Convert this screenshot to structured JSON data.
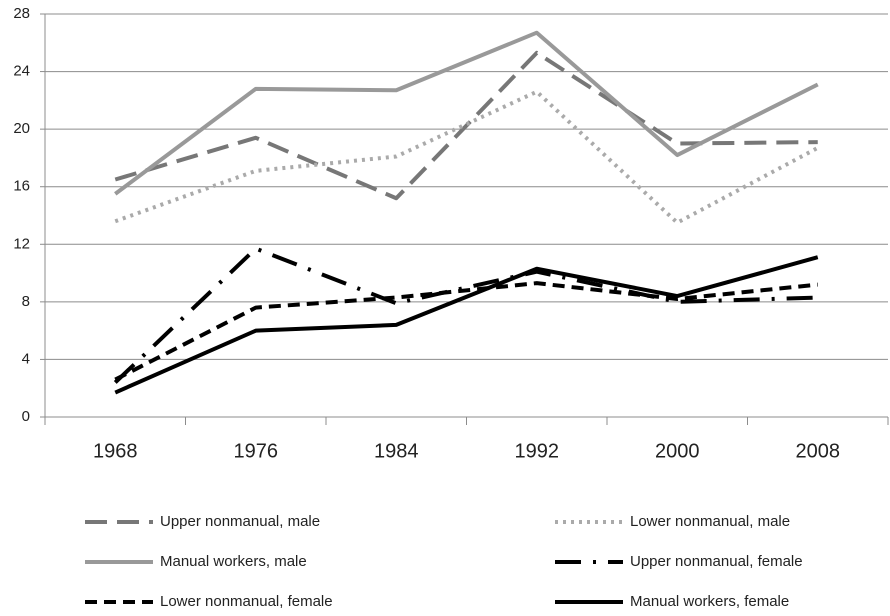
{
  "chart_data": {
    "type": "line",
    "categories": [
      "1968",
      "1976",
      "1984",
      "1992",
      "2000",
      "2008"
    ],
    "ylim": [
      0,
      28
    ],
    "yticks": [
      0,
      4,
      8,
      12,
      16,
      20,
      24,
      28
    ],
    "grid": true,
    "series": [
      {
        "name": "Upper nonmanual, male",
        "color": "#777777",
        "line_style": "long-dash",
        "values": [
          16.5,
          19.4,
          15.2,
          25.3,
          19.0,
          19.1
        ]
      },
      {
        "name": "Lower nonmanual, male",
        "color": "#aaaaaa",
        "line_style": "dot",
        "values": [
          13.6,
          17.1,
          18.1,
          22.6,
          13.5,
          18.7
        ]
      },
      {
        "name": "Manual workers, male",
        "color": "#999999",
        "line_style": "solid",
        "values": [
          15.5,
          22.8,
          22.7,
          26.7,
          18.2,
          23.1
        ]
      },
      {
        "name": "Upper nonmanual, female",
        "color": "#000000",
        "line_style": "dash-dot",
        "values": [
          2.4,
          11.7,
          7.9,
          10.1,
          8.0,
          8.3
        ]
      },
      {
        "name": "Lower nonmanual, female",
        "color": "#000000",
        "line_style": "dash",
        "values": [
          2.6,
          7.6,
          8.3,
          9.3,
          8.2,
          9.2
        ]
      },
      {
        "name": "Manual workers, female",
        "color": "#000000",
        "line_style": "solid",
        "values": [
          1.7,
          6.0,
          6.4,
          10.3,
          8.4,
          11.1
        ]
      }
    ]
  }
}
